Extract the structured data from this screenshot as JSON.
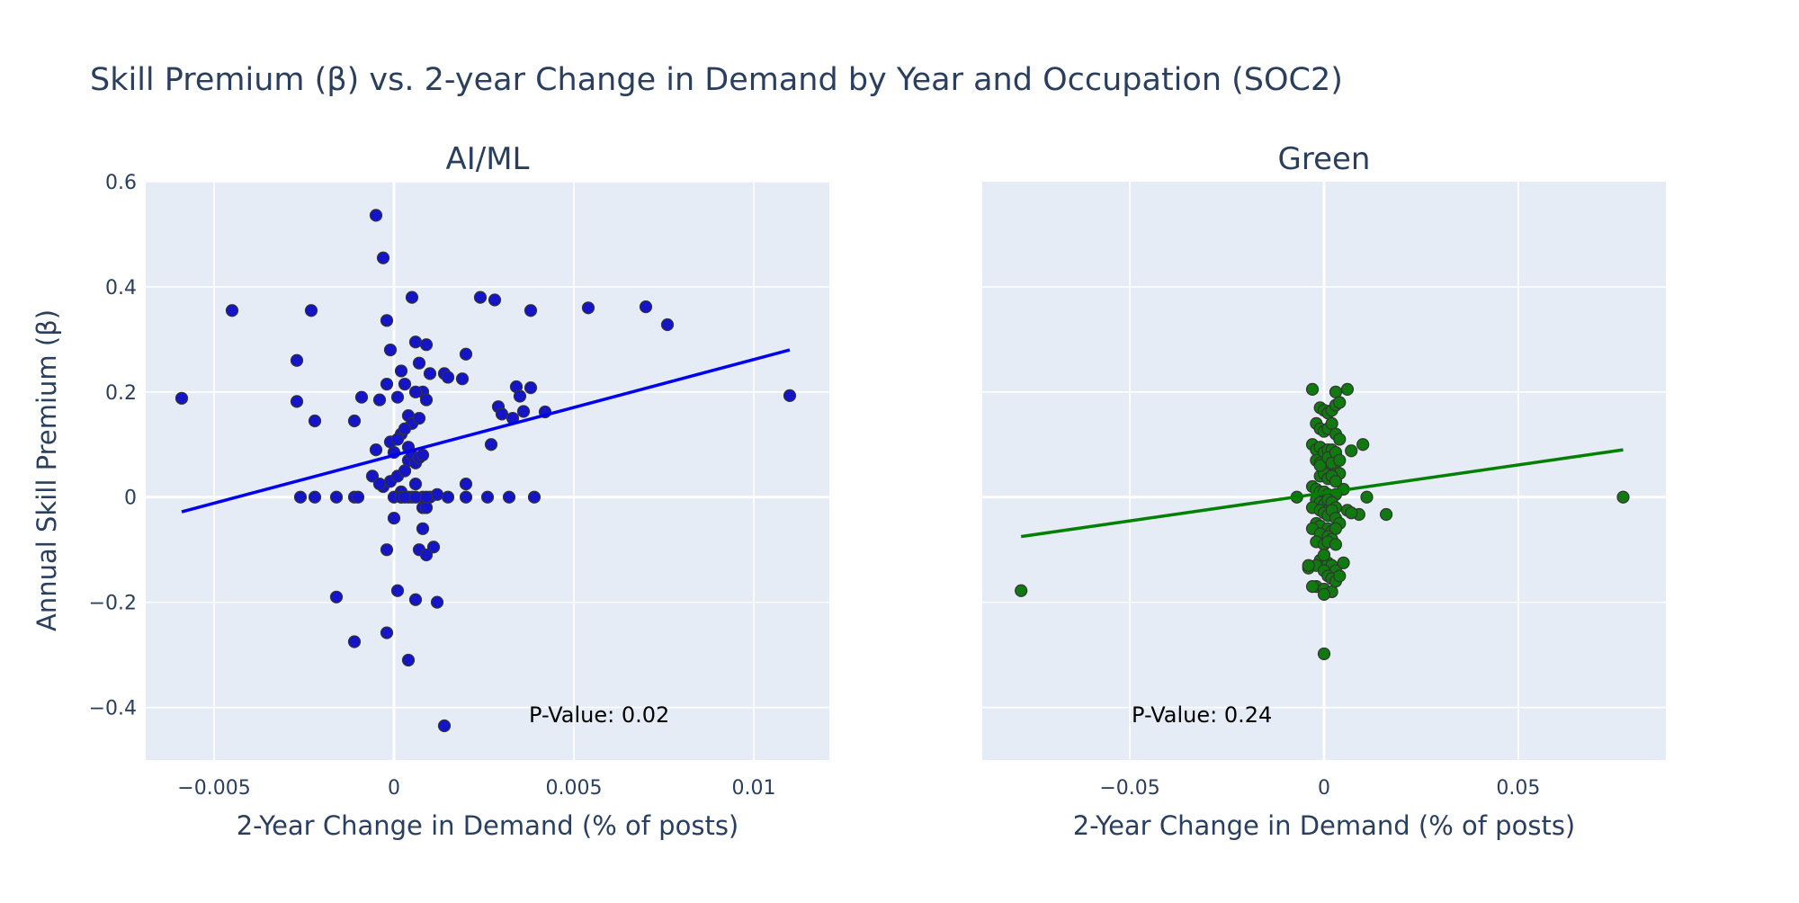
{
  "title": "Skill Premium (β) vs. 2-year Change in Demand by Year and Occupation (SOC2)",
  "colors": {
    "plot_bg": "#e5ecf6",
    "grid": "#ffffff",
    "text": "#2a3f5f",
    "ai_marker": "#1414c8",
    "ai_line": "#0000ee",
    "green_marker": "#107a10",
    "green_line": "#008000",
    "marker_outline": "#333333"
  },
  "chart_data": [
    {
      "type": "scatter",
      "title": "AI/ML",
      "xlabel": "2-Year Change in Demand (% of posts)",
      "ylabel": "Annual Skill Premium (β)",
      "xlim": [
        -0.0069,
        0.0121
      ],
      "ylim": [
        -0.5,
        0.6
      ],
      "x_ticks": [
        -0.005,
        0,
        0.005,
        0.01
      ],
      "x_tick_labels": [
        "−0.005",
        "0",
        "0.005",
        "0.01"
      ],
      "y_ticks": [
        -0.4,
        -0.2,
        0,
        0.2,
        0.4,
        0.6
      ],
      "y_tick_labels": [
        "−0.4",
        "−0.2",
        "0",
        "0.2",
        "0.4",
        "0.6"
      ],
      "grid": true,
      "fit_line": {
        "x": [
          -0.0059,
          0.011
        ],
        "y": [
          -0.028,
          0.28
        ]
      },
      "annotation": "P-Value: 0.02",
      "points": {
        "x": [
          -0.0059,
          -0.0045,
          -0.0023,
          -0.0027,
          -0.0027,
          -0.0022,
          -0.0026,
          -0.0022,
          -0.0016,
          -0.0011,
          -0.001,
          -0.0009,
          -0.0016,
          -0.0011,
          -0.0011,
          -0.0005,
          -0.0003,
          -0.0002,
          -0.0001,
          -0.0004,
          -0.0002,
          -0.0001,
          0.0,
          0.0001,
          0.0002,
          0.0003,
          0.0004,
          0.0004,
          0.0005,
          0.0006,
          0.0007,
          0.0008,
          0.0009,
          0.001,
          0.0005,
          0.0006,
          0.0007,
          0.0003,
          0.0002,
          0.0001,
          0.0003,
          0.0004,
          0.0005,
          0.0006,
          0.0007,
          0.0008,
          0.0009,
          -0.0005,
          -0.0003,
          -0.0001,
          0.0001,
          0.0002,
          0.0003,
          0.0005,
          0.0008,
          0.001,
          0.0012,
          0.0015,
          0.002,
          0.0026,
          0.0032,
          0.0039,
          -0.0006,
          -0.0004,
          -0.0002,
          0.0,
          0.0002,
          0.0004,
          0.0006,
          0.0008,
          0.0009,
          0.0011,
          0.0008,
          0.0007,
          0.0009,
          -0.0002,
          0.0001,
          0.0006,
          0.0012,
          0.0004,
          0.0,
          0.0014,
          0.0024,
          0.0028,
          0.0038,
          0.0054,
          0.007,
          0.0076,
          0.011,
          0.002,
          0.0014,
          0.0015,
          0.0019,
          0.0029,
          0.003,
          0.0034,
          0.0035,
          0.0036,
          0.0038,
          0.0033,
          0.0042,
          0.0027,
          0.002,
          0.0002,
          0.0003,
          0.0006,
          0.0009
        ],
        "y": [
          0.188,
          0.355,
          0.355,
          0.26,
          0.182,
          0.145,
          0.0,
          0.0,
          0.0,
          0.0,
          0.0,
          0.19,
          -0.19,
          0.145,
          -0.275,
          0.536,
          0.455,
          0.336,
          0.28,
          0.185,
          0.215,
          0.105,
          0.085,
          0.19,
          0.24,
          0.215,
          0.155,
          0.095,
          0.14,
          0.295,
          0.255,
          0.2,
          0.29,
          0.235,
          0.38,
          0.2,
          0.15,
          0.05,
          0.12,
          0.11,
          0.13,
          0.07,
          0.08,
          0.065,
          0.075,
          0.08,
          0.185,
          0.09,
          0.02,
          0.03,
          0.04,
          0.01,
          0.05,
          0.0,
          0.0,
          0.0,
          0.005,
          0.0,
          0.0,
          0.0,
          0.0,
          0.0,
          0.04,
          0.025,
          -0.1,
          -0.04,
          0.0,
          0.0,
          0.025,
          -0.02,
          -0.02,
          -0.095,
          -0.06,
          -0.1,
          -0.11,
          -0.258,
          -0.178,
          -0.195,
          -0.2,
          -0.31,
          0.0,
          -0.435,
          0.38,
          0.375,
          0.355,
          0.36,
          0.362,
          0.328,
          0.193,
          0.272,
          0.235,
          0.228,
          0.225,
          0.172,
          0.158,
          0.21,
          0.192,
          0.163,
          0.208,
          0.15,
          0.162,
          0.1,
          0.025,
          0.0,
          0.0,
          0.0,
          0.0
        ]
      }
    },
    {
      "type": "scatter",
      "title": "Green",
      "xlabel": "2-Year Change in Demand (% of posts)",
      "ylabel": "",
      "xlim": [
        -0.088,
        0.088
      ],
      "ylim": [
        -0.5,
        0.6
      ],
      "x_ticks": [
        -0.05,
        0,
        0.05
      ],
      "x_tick_labels": [
        "−0.05",
        "0",
        "0.05"
      ],
      "y_ticks": [
        -0.4,
        -0.2,
        0,
        0.2,
        0.4
      ],
      "y_tick_labels": [],
      "grid": true,
      "fit_line": {
        "x": [
          -0.078,
          0.077
        ],
        "y": [
          -0.075,
          0.09
        ]
      },
      "annotation": "P-Value: 0.24",
      "points": {
        "x": [
          -0.078,
          0.077,
          -0.007,
          0.016,
          0.011,
          0.009,
          0.01,
          0.007,
          0.005,
          0.006,
          0.007,
          -0.003,
          0.003,
          0.006,
          -0.001,
          0.0,
          0.001,
          0.002,
          0.003,
          0.004,
          -0.002,
          -0.001,
          0.0,
          0.001,
          0.002,
          0.003,
          0.004,
          -0.003,
          -0.002,
          -0.001,
          0.0,
          0.001,
          0.002,
          0.003,
          -0.002,
          -0.001,
          0.0,
          0.001,
          0.002,
          0.003,
          0.004,
          -0.001,
          0.0,
          0.001,
          0.002,
          0.003,
          -0.003,
          -0.002,
          -0.001,
          0.0,
          0.001,
          0.002,
          0.003,
          -0.002,
          -0.001,
          0.0,
          0.001,
          0.002,
          0.003,
          -0.003,
          -0.001,
          0.0,
          0.001,
          0.002,
          0.003,
          0.004,
          -0.002,
          -0.001,
          0.001,
          0.002,
          0.003,
          -0.003,
          -0.001,
          0.001,
          0.002,
          -0.002,
          0.0,
          0.001,
          0.003,
          -0.001,
          0.0,
          0.001,
          0.002,
          0.003,
          -0.004,
          -0.002,
          0.0,
          0.001,
          0.002,
          0.005,
          -0.002,
          0.0,
          0.002,
          0.003,
          0.004,
          0.0,
          -0.003,
          0.0,
          -0.001,
          0.001,
          0.002,
          0.003,
          0.004,
          -0.004,
          0.0
        ],
        "y": [
          -0.178,
          0.0,
          0.0,
          -0.033,
          0.0,
          -0.033,
          0.1,
          0.088,
          0.015,
          -0.025,
          -0.03,
          0.205,
          0.2,
          0.205,
          0.17,
          0.165,
          0.16,
          0.165,
          0.175,
          0.18,
          0.14,
          0.13,
          0.125,
          0.13,
          0.14,
          0.12,
          0.11,
          0.1,
          0.09,
          0.095,
          0.085,
          0.09,
          0.09,
          0.08,
          0.07,
          0.065,
          0.06,
          0.07,
          0.055,
          0.05,
          0.045,
          0.04,
          0.045,
          0.035,
          0.04,
          0.03,
          0.02,
          0.015,
          0.01,
          0.01,
          0.005,
          0.0,
          0.005,
          -0.005,
          -0.01,
          -0.015,
          -0.005,
          -0.01,
          -0.02,
          -0.02,
          -0.025,
          -0.03,
          -0.035,
          -0.025,
          -0.04,
          -0.05,
          -0.05,
          -0.055,
          -0.06,
          -0.065,
          -0.06,
          -0.06,
          -0.07,
          -0.075,
          -0.08,
          -0.085,
          -0.09,
          -0.085,
          -0.09,
          -0.12,
          -0.13,
          -0.125,
          -0.13,
          -0.14,
          -0.135,
          -0.13,
          -0.14,
          -0.15,
          -0.155,
          -0.125,
          -0.17,
          -0.175,
          -0.18,
          -0.16,
          -0.15,
          -0.185,
          -0.17,
          -0.298,
          0.06,
          0.075,
          0.065,
          0.085,
          0.07,
          -0.13,
          -0.11
        ]
      }
    }
  ]
}
